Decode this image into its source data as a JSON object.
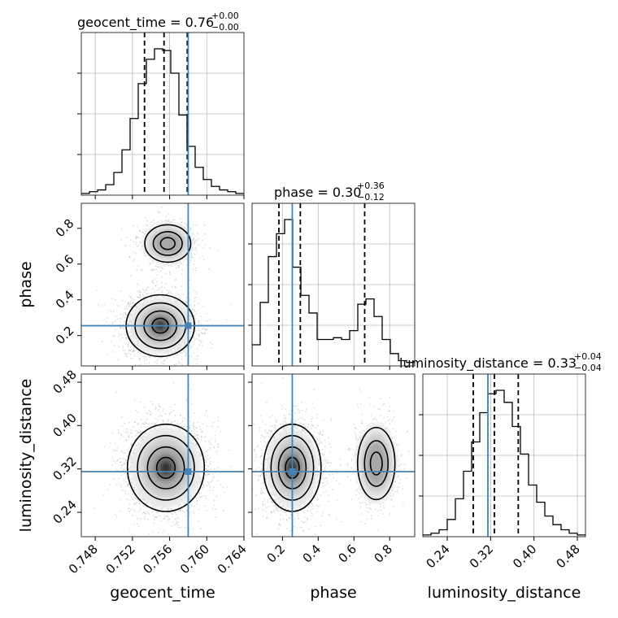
{
  "chart_data": {
    "type": "corner",
    "parameters": [
      "geocent_time",
      "phase",
      "luminosity_distance"
    ],
    "truth_color": "#4682b4",
    "titles": [
      {
        "name": "geocent_time",
        "value": "0.76",
        "plus": "+0.00",
        "minus": "−0.00"
      },
      {
        "name": "phase",
        "value": "0.30",
        "plus": "+0.36",
        "minus": "−0.12"
      },
      {
        "name": "luminosity_distance",
        "value": "0.33",
        "plus": "+0.04",
        "minus": "−0.04"
      }
    ],
    "axes": {
      "geocent_time": {
        "range": [
          0.7465,
          0.764
        ],
        "ticks": [
          "0.748",
          "0.752",
          "0.756",
          "0.760",
          "0.764"
        ],
        "quantiles": [
          0.7533,
          0.7554,
          0.7579
        ],
        "truth": 0.758
      },
      "phase": {
        "range": [
          0.03,
          0.94
        ],
        "ticks": [
          "0.2",
          "0.4",
          "0.6",
          "0.8"
        ],
        "quantiles": [
          0.18,
          0.3,
          0.66
        ],
        "truth": 0.255
      },
      "luminosity_distance": {
        "range": [
          0.195,
          0.495
        ],
        "ticks": [
          "0.24",
          "0.32",
          "0.40",
          "0.48"
        ],
        "quantiles": [
          0.288,
          0.327,
          0.371
        ],
        "truth": 0.315
      }
    },
    "hist_1d": {
      "geocent_time": [
        1,
        2,
        3,
        6,
        13,
        26,
        44,
        64,
        78,
        84,
        83,
        70,
        46,
        28,
        16,
        9,
        5,
        3,
        2,
        1
      ],
      "phase": [
        12,
        36,
        62,
        75,
        83,
        56,
        40,
        30,
        15,
        15,
        16,
        15,
        20,
        35,
        38,
        28,
        15,
        7,
        3,
        2
      ],
      "luminosity_distance": [
        1,
        2,
        4,
        10,
        22,
        38,
        55,
        72,
        83,
        85,
        78,
        64,
        48,
        30,
        20,
        12,
        7,
        4,
        2,
        1
      ]
    }
  },
  "axis_labels": {
    "geocent_time": "geocent_time",
    "phase": "phase",
    "luminosity_distance": "luminosity_distance"
  }
}
